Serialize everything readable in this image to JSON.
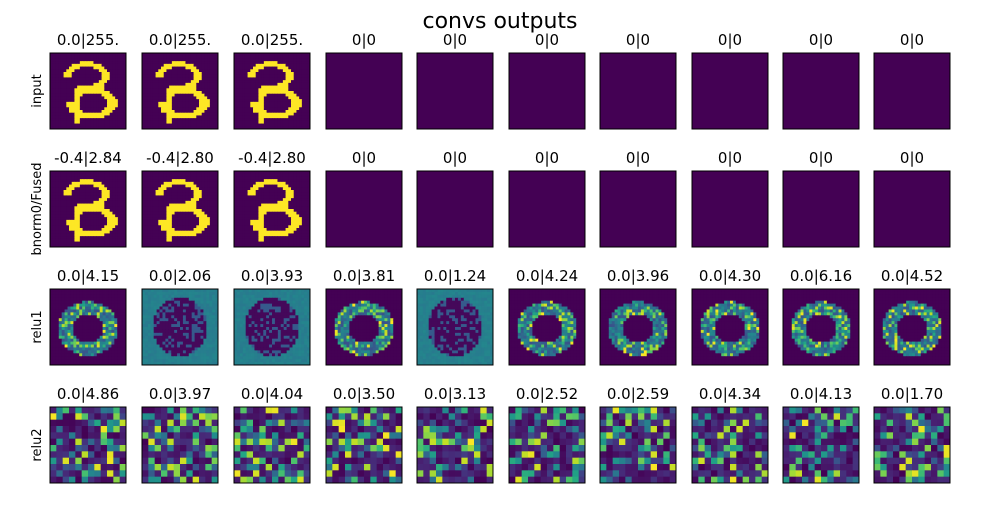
{
  "figure": {
    "title": "convs outputs"
  },
  "colors": {
    "background": "#ffffff",
    "frame": "#000000",
    "text": "#000000",
    "colormap": "viridis"
  },
  "chart_data": {
    "type": "heatmap",
    "title": "convs outputs",
    "colormap": "viridis",
    "rows": [
      {
        "label": "input",
        "panels": [
          {
            "range": "0.0|255.",
            "content": "digit-3"
          },
          {
            "range": "0.0|255.",
            "content": "digit-3"
          },
          {
            "range": "0.0|255.",
            "content": "digit-3"
          },
          {
            "range": "0|0",
            "content": "empty"
          },
          {
            "range": "0|0",
            "content": "empty"
          },
          {
            "range": "0|0",
            "content": "empty"
          },
          {
            "range": "0|0",
            "content": "empty"
          },
          {
            "range": "0|0",
            "content": "empty"
          },
          {
            "range": "0|0",
            "content": "empty"
          },
          {
            "range": "0|0",
            "content": "empty"
          }
        ]
      },
      {
        "label": "bnorm0/Fused",
        "panels": [
          {
            "range": "-0.4|2.84",
            "content": "digit-3"
          },
          {
            "range": "-0.4|2.80",
            "content": "digit-3"
          },
          {
            "range": "-0.4|2.80",
            "content": "digit-3"
          },
          {
            "range": "0|0",
            "content": "empty"
          },
          {
            "range": "0|0",
            "content": "empty"
          },
          {
            "range": "0|0",
            "content": "empty"
          },
          {
            "range": "0|0",
            "content": "empty"
          },
          {
            "range": "0|0",
            "content": "empty"
          },
          {
            "range": "0|0",
            "content": "empty"
          },
          {
            "range": "0|0",
            "content": "empty"
          }
        ]
      },
      {
        "label": "relu1",
        "panels": [
          {
            "range": "0.0|4.15",
            "content": "activation"
          },
          {
            "range": "0.0|2.06",
            "content": "inverted-activation"
          },
          {
            "range": "0.0|3.93",
            "content": "inverted-activation"
          },
          {
            "range": "0.0|3.81",
            "content": "activation"
          },
          {
            "range": "0.0|1.24",
            "content": "inverted-activation"
          },
          {
            "range": "0.0|4.24",
            "content": "activation"
          },
          {
            "range": "0.0|3.96",
            "content": "activation"
          },
          {
            "range": "0.0|4.30",
            "content": "activation"
          },
          {
            "range": "0.0|6.16",
            "content": "activation"
          },
          {
            "range": "0.0|4.52",
            "content": "activation"
          }
        ]
      },
      {
        "label": "relu2",
        "panels": [
          {
            "range": "0.0|4.86",
            "content": "coarse-activation"
          },
          {
            "range": "0.0|3.97",
            "content": "coarse-activation"
          },
          {
            "range": "0.0|4.04",
            "content": "coarse-activation"
          },
          {
            "range": "0.0|3.50",
            "content": "coarse-activation"
          },
          {
            "range": "0.0|3.13",
            "content": "coarse-activation"
          },
          {
            "range": "0.0|2.52",
            "content": "coarse-activation"
          },
          {
            "range": "0.0|2.59",
            "content": "coarse-activation"
          },
          {
            "range": "0.0|4.34",
            "content": "coarse-activation"
          },
          {
            "range": "0.0|4.13",
            "content": "coarse-activation"
          },
          {
            "range": "0.0|1.70",
            "content": "coarse-activation"
          }
        ]
      }
    ]
  }
}
